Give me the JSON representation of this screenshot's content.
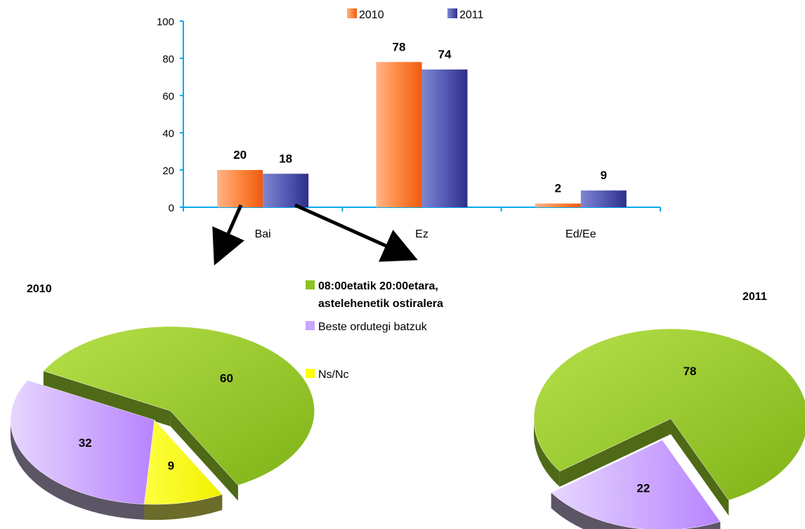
{
  "chart_data": [
    {
      "type": "bar",
      "categories": [
        "Bai",
        "Ez",
        "Ed/Ee"
      ],
      "series": [
        {
          "name": "2010",
          "values": [
            20,
            78,
            2
          ]
        },
        {
          "name": "2011",
          "values": [
            18,
            74,
            9
          ]
        }
      ],
      "ylim": [
        0,
        100
      ],
      "yticks": [
        0,
        20,
        40,
        60,
        80,
        100
      ],
      "legend": "top",
      "grid": false
    },
    {
      "type": "pie",
      "title": "2010",
      "slices": [
        {
          "label": "08:00etatik 20:00etara, astelehenetik ostiralera",
          "value": 60
        },
        {
          "label": "Beste ordutegi batzuk",
          "value": 32
        },
        {
          "label": "Ns/Nc",
          "value": 9
        }
      ]
    },
    {
      "type": "pie",
      "title": "2011",
      "slices": [
        {
          "label": "08:00etatik 20:00etara, astelehenetik ostiralera",
          "value": 78
        },
        {
          "label": "Beste ordutegi batzuk",
          "value": 22
        }
      ]
    }
  ],
  "pie_legend": {
    "items": [
      {
        "lines": [
          "08:00etatik 20:00etara,",
          "astelehenetik ostiralera"
        ],
        "color": "#8dc21f",
        "bold": true
      },
      {
        "lines": [
          "Beste ordutegi batzuk"
        ],
        "color": "#c9a6ff",
        "bold": false
      },
      {
        "lines": [
          "Ns/Nc"
        ],
        "color": "#ffff00",
        "bold": false
      }
    ]
  },
  "colors": {
    "series_2010": "#ff7b2e",
    "series_2011": "#4b4fa8",
    "axis": "#00aaee",
    "slice_green": "#8dc21f",
    "slice_purple": "#c9a6ff",
    "slice_yellow": "#ffff00"
  }
}
